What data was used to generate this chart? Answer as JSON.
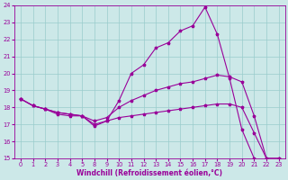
{
  "xlabel": "Windchill (Refroidissement éolien,°C)",
  "bg_color": "#cce8e8",
  "line_color": "#990099",
  "grid_color": "#99cccc",
  "ylim": [
    15,
    24
  ],
  "ytick_vals": [
    15,
    16,
    17,
    18,
    19,
    20,
    21,
    22,
    23,
    24
  ],
  "x_positions": [
    0,
    1,
    2,
    3,
    4,
    5,
    6,
    7,
    8,
    9,
    10,
    11,
    12,
    13,
    14,
    15,
    16,
    17,
    18,
    19,
    20,
    21
  ],
  "x_labels": [
    "0",
    "1",
    "2",
    "3",
    "4",
    "5",
    "8",
    "9",
    "10",
    "11",
    "12",
    "13",
    "14",
    "15",
    "16",
    "17",
    "18",
    "19",
    "20",
    "21",
    "22",
    "23"
  ],
  "line1_y": [
    18.5,
    18.1,
    17.9,
    17.6,
    17.5,
    17.5,
    16.9,
    17.2,
    18.4,
    20.0,
    20.5,
    21.5,
    21.8,
    22.5,
    22.8,
    23.9,
    22.3,
    19.7,
    16.7,
    15.0,
    14.8,
    14.9
  ],
  "line2_y": [
    18.5,
    18.1,
    17.9,
    17.7,
    17.6,
    17.5,
    17.2,
    17.4,
    18.0,
    18.4,
    18.7,
    19.0,
    19.2,
    19.4,
    19.5,
    19.7,
    19.9,
    19.8,
    19.5,
    17.5,
    15.0,
    15.0
  ],
  "line3_y": [
    18.5,
    18.1,
    17.9,
    17.7,
    17.6,
    17.5,
    17.0,
    17.2,
    17.4,
    17.5,
    17.6,
    17.7,
    17.8,
    17.9,
    18.0,
    18.1,
    18.2,
    18.2,
    18.0,
    16.5,
    15.0,
    15.0
  ],
  "figsize": [
    3.2,
    2.0
  ],
  "dpi": 100,
  "xlabel_fontsize": 5.5,
  "tick_fontsize": 4.8,
  "marker_size": 2.5,
  "linewidth": 0.8
}
